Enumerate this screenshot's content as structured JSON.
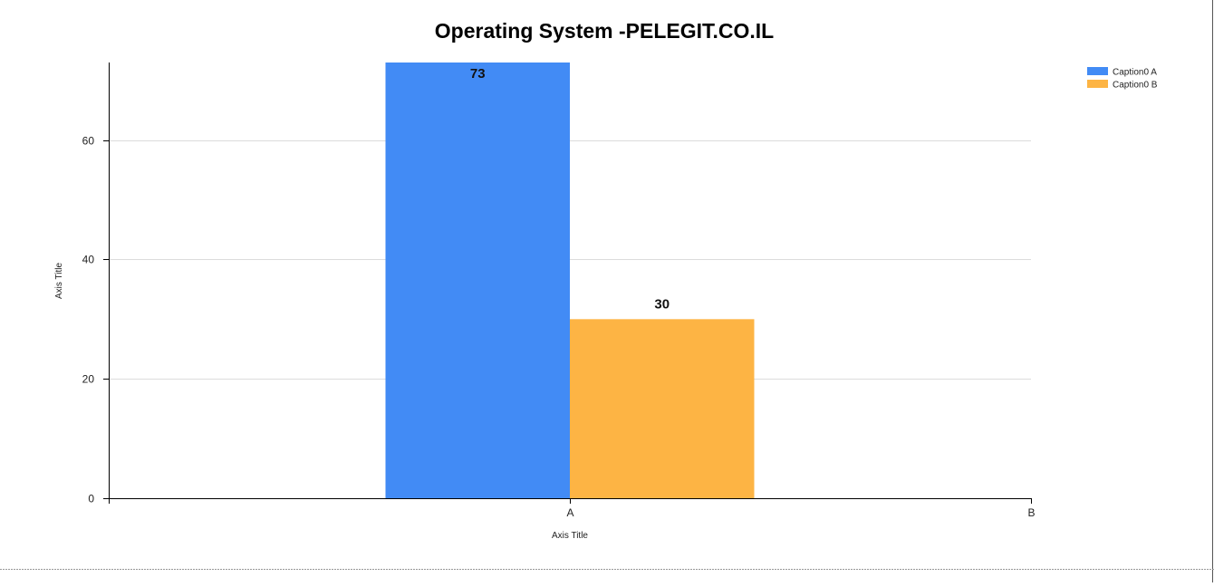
{
  "chart_data": {
    "type": "bar",
    "title": "Operating System -PELEGIT.CO.IL",
    "xlabel": "Axis Title",
    "ylabel": "Axis Title",
    "categories": [
      "A",
      "B"
    ],
    "series": [
      {
        "name": "Caption0 A",
        "color": "#428bf5",
        "values": [
          73,
          null
        ]
      },
      {
        "name": "Caption0 B",
        "color": "#fdb444",
        "values": [
          30,
          null
        ]
      }
    ],
    "yticks": [
      0,
      20,
      40,
      60
    ],
    "ylim": [
      0,
      73
    ],
    "grid": true,
    "legend_position": "top-right"
  }
}
